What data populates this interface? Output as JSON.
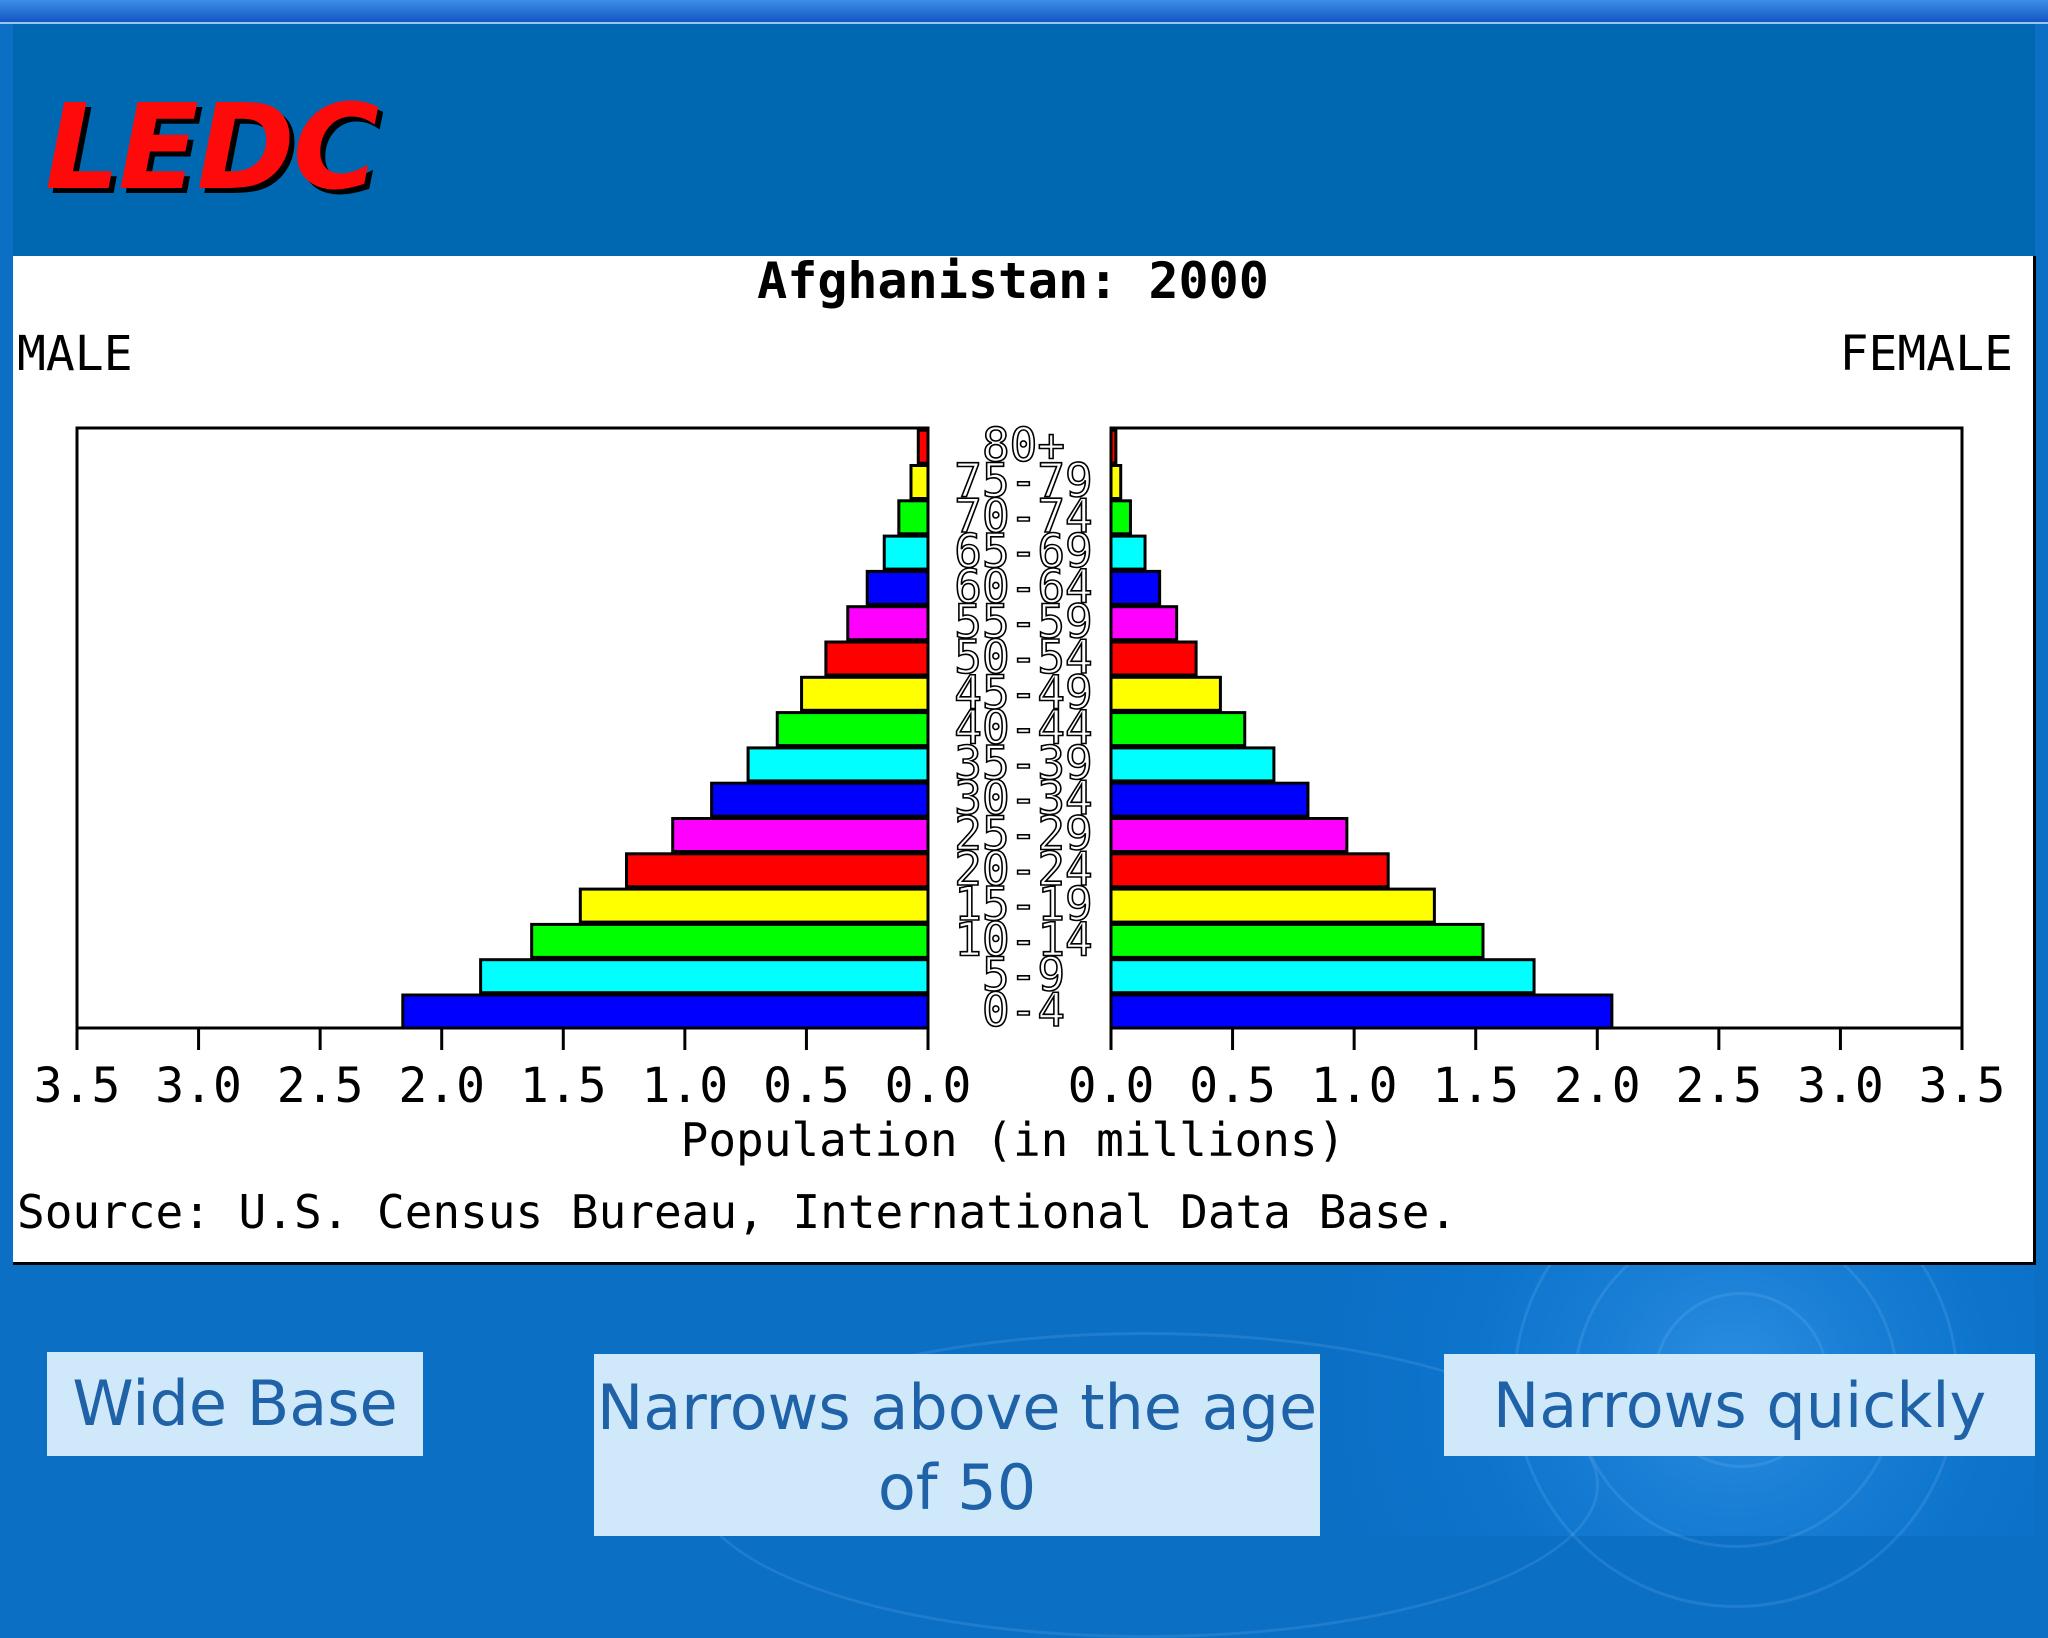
{
  "slide": {
    "title": "LEDC"
  },
  "captions": [
    "Wide Base",
    "Narrows above the age of 50",
    "Narrows quickly"
  ],
  "colors": {
    "background": "#0b6fc4",
    "header": "#0067b1",
    "title": "#ff0a0a",
    "caption_bg": "#cfe8fa",
    "caption_text": "#1f62a8",
    "bar_cycle": [
      "#0000ff",
      "#00ffff",
      "#00ff00",
      "#ffff00",
      "#ff0000",
      "#ff00ff"
    ]
  },
  "chart_data": {
    "type": "bar",
    "orientation": "horizontal",
    "title": "Afghanistan: 2000",
    "left_label": "MALE",
    "right_label": "FEMALE",
    "xlabel": "Population (in millions)",
    "source": "Source: U.S. Census Bureau, International Data Base.",
    "xlim": [
      0,
      3.5
    ],
    "ticks": [
      "0.0",
      "0.5",
      "1.0",
      "1.5",
      "2.0",
      "2.5",
      "3.0",
      "3.5"
    ],
    "categories": [
      "0-4",
      "5-9",
      "10-14",
      "15-19",
      "20-24",
      "25-29",
      "30-34",
      "35-39",
      "40-44",
      "45-49",
      "50-54",
      "55-59",
      "60-64",
      "65-69",
      "70-74",
      "75-79",
      "80+"
    ],
    "series": [
      {
        "name": "MALE",
        "values": [
          2.16,
          1.84,
          1.63,
          1.43,
          1.24,
          1.05,
          0.89,
          0.74,
          0.62,
          0.52,
          0.42,
          0.33,
          0.25,
          0.18,
          0.12,
          0.07,
          0.04
        ]
      },
      {
        "name": "FEMALE",
        "values": [
          2.06,
          1.74,
          1.53,
          1.33,
          1.14,
          0.97,
          0.81,
          0.67,
          0.55,
          0.45,
          0.35,
          0.27,
          0.2,
          0.14,
          0.08,
          0.04,
          0.02
        ]
      }
    ],
    "grid": false,
    "legend": "none"
  }
}
